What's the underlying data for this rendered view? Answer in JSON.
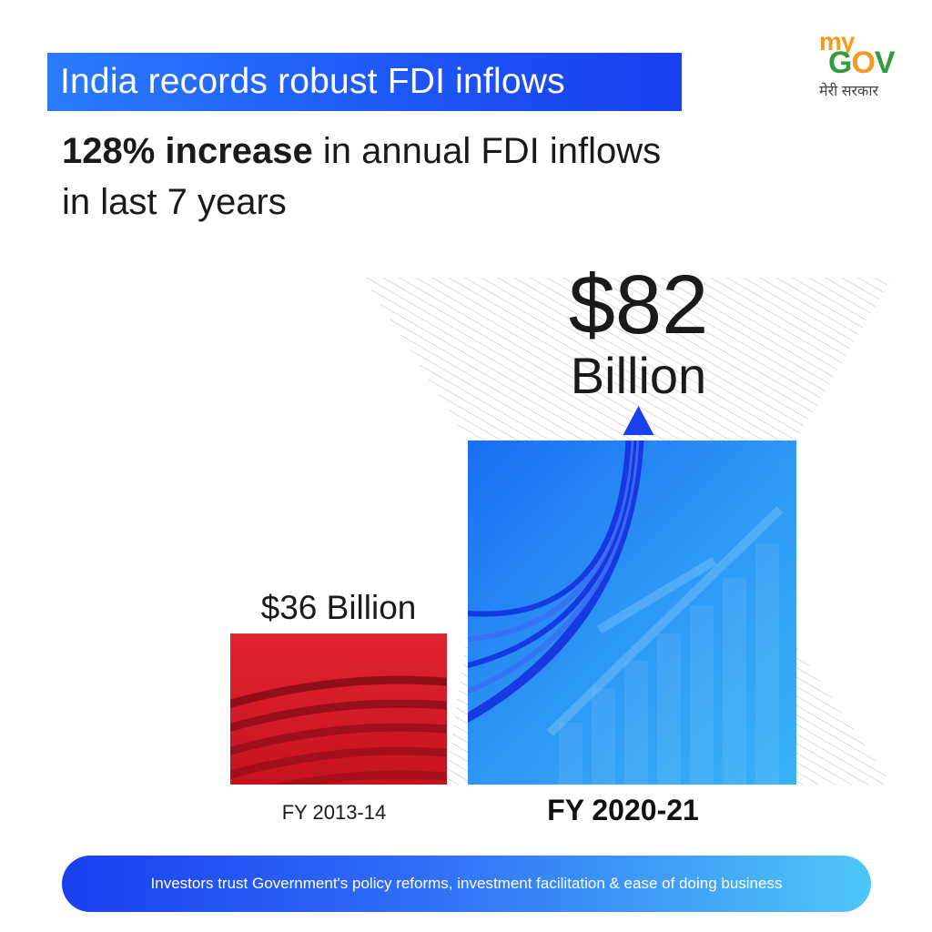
{
  "header": {
    "title": "India records robust FDI inflows",
    "headline_bold": "128% increase",
    "headline_rest": " in annual FDI inflows in last 7 years"
  },
  "logo": {
    "my": "my",
    "gov_g": "G",
    "gov_o": "O",
    "gov_v": "V",
    "tagline": "मेरी सरकार"
  },
  "footer": {
    "text": "Investors trust Government's policy reforms, investment facilitation & ease of doing business"
  },
  "colors": {
    "title_band": "#1d55f5",
    "bar_red": "#d81a2a",
    "bar_blue": "#2c8cf3",
    "arrow": "#1840ee"
  },
  "chart_data": {
    "type": "bar",
    "categories": [
      "FY 2013-14",
      "FY 2020-21"
    ],
    "values": [
      36,
      82
    ],
    "value_labels": [
      "$36 Billion",
      "$82 Billion"
    ],
    "unit": "Billion USD",
    "ylim": [
      0,
      82
    ],
    "grid": false,
    "legend": "none"
  }
}
